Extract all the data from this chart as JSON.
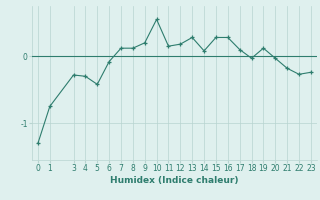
{
  "x": [
    0,
    1,
    3,
    4,
    5,
    6,
    7,
    8,
    9,
    10,
    11,
    12,
    13,
    14,
    15,
    16,
    17,
    18,
    19,
    20,
    21,
    22,
    23
  ],
  "y": [
    -1.3,
    -0.75,
    -0.28,
    -0.3,
    -0.42,
    -0.08,
    0.12,
    0.12,
    0.2,
    0.55,
    0.15,
    0.18,
    0.28,
    0.08,
    0.28,
    0.28,
    0.1,
    -0.03,
    0.12,
    -0.03,
    -0.18,
    -0.27,
    -0.24
  ],
  "line_color": "#2e7d6e",
  "marker": "+",
  "bg_color": "#dff0ee",
  "grid_color": "#b8d4d0",
  "hline_color": "#2e7d6e",
  "xlabel": "Humidex (Indice chaleur)",
  "xlim": [
    -0.5,
    23.5
  ],
  "ylim": [
    -1.55,
    0.75
  ],
  "yticks": [
    -1,
    0
  ],
  "xticks": [
    0,
    1,
    3,
    4,
    5,
    6,
    7,
    8,
    9,
    10,
    11,
    12,
    13,
    14,
    15,
    16,
    17,
    18,
    19,
    20,
    21,
    22,
    23
  ],
  "label_fontsize": 6.5,
  "tick_fontsize": 5.5
}
